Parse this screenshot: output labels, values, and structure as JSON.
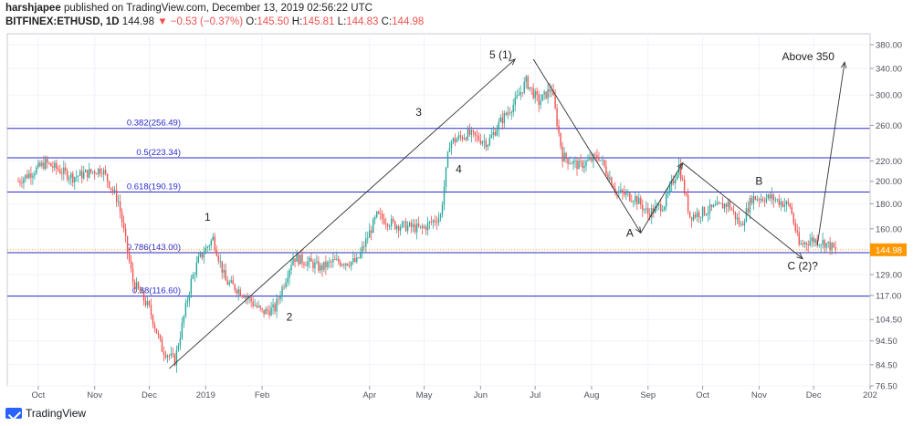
{
  "header": {
    "author": "harshjapee",
    "published_text": "published on TradingView.com, December 13, 2019 02:56:22 UTC",
    "symbol": "BITFINEX:ETHUSD, 1D",
    "last": "144.98",
    "change": "▼ −0.53 (−0.37%)",
    "o_label": "O:",
    "o_value": "145.50",
    "h_label": "H:",
    "h_value": "145.81",
    "l_label": "L:",
    "l_value": "144.83",
    "c_label": "C:",
    "c_value": "144.98"
  },
  "footer": {
    "brand": "TradingView"
  },
  "chart_data": {
    "type": "candlestick",
    "symbol": "BITFINEX:ETHUSD",
    "interval": "1D",
    "y_scale": "log",
    "ylim": [
      76.5,
      400
    ],
    "y_ticks": [
      "380.00",
      "340.00",
      "300.00",
      "260.00",
      "220.00",
      "200.00",
      "180.00",
      "160.00",
      "143.00",
      "129.00",
      "117.00",
      "104.50",
      "94.50",
      "84.50",
      "76.50"
    ],
    "x_ticks": [
      "Oct",
      "Nov",
      "Dec",
      "2019",
      "Feb",
      "Apr",
      "May",
      "Jun",
      "Jul",
      "Aug",
      "Sep",
      "Oct",
      "Nov",
      "Dec",
      "202"
    ],
    "last_price_label": "144.98",
    "colors": {
      "up": "#26a69a",
      "down": "#ef5350",
      "fib": "#2b2bcc",
      "last": "#ff9800"
    },
    "fib_levels": [
      {
        "label": "0.382(256.49)",
        "value": 256.49
      },
      {
        "label": "0.5(223.34)",
        "value": 223.34
      },
      {
        "label": "0.618(190.19)",
        "value": 190.19
      },
      {
        "label": "0.786(143.00)",
        "value": 143.0
      },
      {
        "label": "0.88(116.60)",
        "value": 116.6
      }
    ],
    "wave_labels": [
      "1",
      "2",
      "3",
      "4",
      "5 (1)",
      "A",
      "B",
      "C (2)?",
      "Above 350"
    ],
    "path_points": [
      {
        "date": "2018-09-20",
        "price": 200
      },
      {
        "date": "2018-10-05",
        "price": 218
      },
      {
        "date": "2018-10-20",
        "price": 204
      },
      {
        "date": "2018-11-05",
        "price": 212
      },
      {
        "date": "2018-11-14",
        "price": 182
      },
      {
        "date": "2018-11-22",
        "price": 125
      },
      {
        "date": "2018-12-01",
        "price": 110
      },
      {
        "date": "2018-12-08",
        "price": 91
      },
      {
        "date": "2018-12-15",
        "price": 86
      },
      {
        "date": "2018-12-24",
        "price": 125
      },
      {
        "date": "2018-12-28",
        "price": 138
      },
      {
        "date": "2019-01-05",
        "price": 153
      },
      {
        "date": "2019-01-12",
        "price": 125
      },
      {
        "date": "2019-01-22",
        "price": 118
      },
      {
        "date": "2019-02-01",
        "price": 108
      },
      {
        "date": "2019-02-08",
        "price": 110
      },
      {
        "date": "2019-02-18",
        "price": 140
      },
      {
        "date": "2019-02-28",
        "price": 136
      },
      {
        "date": "2019-03-05",
        "price": 133
      },
      {
        "date": "2019-03-12",
        "price": 137
      },
      {
        "date": "2019-03-25",
        "price": 137
      },
      {
        "date": "2019-04-05",
        "price": 170
      },
      {
        "date": "2019-04-15",
        "price": 163
      },
      {
        "date": "2019-04-30",
        "price": 160
      },
      {
        "date": "2019-05-10",
        "price": 170
      },
      {
        "date": "2019-05-15",
        "price": 240
      },
      {
        "date": "2019-05-25",
        "price": 250
      },
      {
        "date": "2019-06-05",
        "price": 240
      },
      {
        "date": "2019-06-12",
        "price": 265
      },
      {
        "date": "2019-06-20",
        "price": 290
      },
      {
        "date": "2019-06-26",
        "price": 320
      },
      {
        "date": "2019-07-03",
        "price": 290
      },
      {
        "date": "2019-07-10",
        "price": 310
      },
      {
        "date": "2019-07-16",
        "price": 225
      },
      {
        "date": "2019-07-25",
        "price": 215
      },
      {
        "date": "2019-08-05",
        "price": 225
      },
      {
        "date": "2019-08-15",
        "price": 190
      },
      {
        "date": "2019-08-25",
        "price": 185
      },
      {
        "date": "2019-09-01",
        "price": 172
      },
      {
        "date": "2019-09-10",
        "price": 180
      },
      {
        "date": "2019-09-18",
        "price": 215
      },
      {
        "date": "2019-09-24",
        "price": 170
      },
      {
        "date": "2019-10-05",
        "price": 175
      },
      {
        "date": "2019-10-15",
        "price": 180
      },
      {
        "date": "2019-10-22",
        "price": 162
      },
      {
        "date": "2019-10-28",
        "price": 185
      },
      {
        "date": "2019-11-08",
        "price": 185
      },
      {
        "date": "2019-11-18",
        "price": 178
      },
      {
        "date": "2019-11-23",
        "price": 148
      },
      {
        "date": "2019-11-30",
        "price": 152
      },
      {
        "date": "2019-12-07",
        "price": 150
      },
      {
        "date": "2019-12-13",
        "price": 144.98
      }
    ],
    "projection_arrows": [
      {
        "from": {
          "date": "2018-12-12",
          "price": 83
        },
        "to": {
          "date": "2019-06-20",
          "price": 355
        }
      },
      {
        "from": {
          "date": "2019-06-30",
          "price": 355
        },
        "to": {
          "date": "2019-08-28",
          "price": 157
        }
      },
      {
        "from": {
          "date": "2019-08-28",
          "price": 157
        },
        "to": {
          "date": "2019-09-20",
          "price": 218
        }
      },
      {
        "from": {
          "date": "2019-09-20",
          "price": 218
        },
        "to": {
          "date": "2019-11-25",
          "price": 139
        }
      },
      {
        "from": {
          "date": "2019-12-03",
          "price": 148
        },
        "to": {
          "date": "2019-12-18",
          "price": 350
        }
      }
    ],
    "annotations": [
      {
        "text": "1",
        "date": "2019-01-02",
        "price": 166
      },
      {
        "text": "2",
        "date": "2019-02-16",
        "price": 104
      },
      {
        "text": "3",
        "date": "2019-04-28",
        "price": 272
      },
      {
        "text": "4",
        "date": "2019-05-20",
        "price": 208
      },
      {
        "text": "5 (1)",
        "date": "2019-06-12",
        "price": 356
      },
      {
        "text": "A",
        "date": "2019-08-22",
        "price": 154
      },
      {
        "text": "B",
        "date": "2019-11-01",
        "price": 197
      },
      {
        "text": "C (2)?",
        "date": "2019-11-25",
        "price": 132
      },
      {
        "text": "Above 350",
        "date": "2019-11-28",
        "price": 353
      }
    ]
  }
}
